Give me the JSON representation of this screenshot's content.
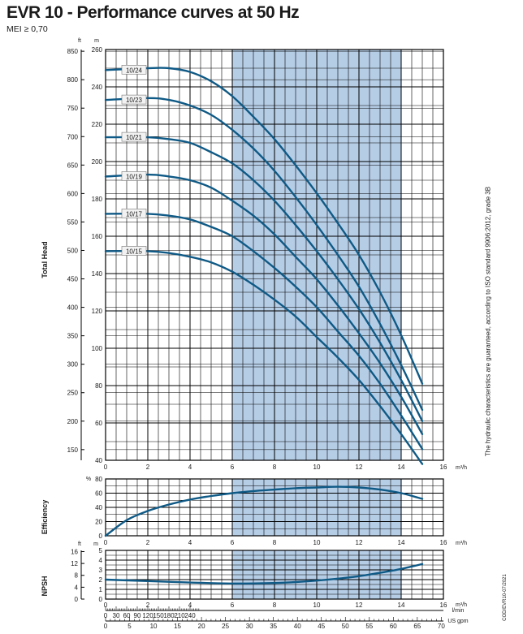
{
  "header": {
    "title": "EVR 10 - Performance curves at 50 Hz",
    "subtitle": "MEI ≥ 0,70",
    "side_note": "The hydraulic characteristics are guaranteed, according to ISO standard 9906:2012, grade 3B",
    "code": "COD/EVR10-07/2021"
  },
  "colors": {
    "curve": "#0f5a86",
    "band": "#b6cde6",
    "grid": "#000000",
    "label_bg": "#f2f2f2"
  },
  "chart_data": [
    {
      "id": "head",
      "type": "line",
      "ylabel": "Total Head",
      "left_unit": "ft",
      "right_unit": "m",
      "x_unit": "m³/h",
      "xlim": [
        0,
        16
      ],
      "ylim": [
        40,
        260
      ],
      "x_ticks": [
        0,
        2,
        4,
        6,
        8,
        10,
        12,
        14,
        16
      ],
      "y_ticks_m": [
        40,
        60,
        80,
        100,
        120,
        140,
        160,
        180,
        200,
        220,
        240,
        260
      ],
      "y_ticks_ft": [
        150,
        200,
        250,
        300,
        350,
        400,
        450,
        500,
        550,
        600,
        650,
        700,
        750,
        800,
        850
      ],
      "grid": true,
      "shaded_x_range": [
        6,
        14
      ],
      "series": [
        {
          "name": "10/24",
          "x": [
            0,
            2,
            3,
            4,
            5,
            6,
            7,
            8,
            9,
            10,
            11,
            12,
            13,
            14,
            15
          ],
          "y": [
            249,
            250,
            250,
            248,
            243,
            235,
            224,
            212,
            198,
            183,
            167,
            150,
            130,
            107,
            81
          ]
        },
        {
          "name": "10/23",
          "x": [
            0,
            2,
            3,
            4,
            5,
            6,
            7,
            8,
            9,
            10,
            11,
            12,
            13,
            14,
            15
          ],
          "y": [
            233,
            234,
            233,
            230,
            225,
            217,
            207,
            195,
            181,
            166,
            150,
            133,
            113,
            91,
            67
          ]
        },
        {
          "name": "10/21",
          "x": [
            0,
            2,
            3,
            4,
            5,
            6,
            7,
            8,
            9,
            10,
            11,
            12,
            13,
            14,
            15
          ],
          "y": [
            213,
            213,
            212,
            210,
            205,
            199,
            190,
            179,
            166,
            152,
            137,
            121,
            103,
            83,
            61
          ]
        },
        {
          "name": "10/19",
          "x": [
            0,
            2,
            3,
            4,
            5,
            6,
            7,
            8,
            9,
            10,
            11,
            12,
            13,
            14,
            15
          ],
          "y": [
            192,
            193,
            192,
            190,
            186,
            179,
            171,
            161,
            149,
            137,
            123,
            108,
            92,
            74,
            54
          ]
        },
        {
          "name": "10/17",
          "x": [
            0,
            2,
            3,
            4,
            5,
            6,
            7,
            8,
            9,
            10,
            11,
            12,
            13,
            14,
            15
          ],
          "y": [
            172,
            172,
            171,
            169,
            165,
            160,
            152,
            143,
            133,
            122,
            109,
            96,
            81,
            64,
            46
          ]
        },
        {
          "name": "10/15",
          "x": [
            0,
            2,
            3,
            4,
            5,
            6,
            7,
            8,
            9,
            10,
            11,
            12,
            13,
            14,
            15
          ],
          "y": [
            152,
            152,
            151,
            149,
            146,
            141,
            134,
            126,
            117,
            106,
            95,
            83,
            69,
            54,
            38
          ]
        }
      ]
    },
    {
      "id": "efficiency",
      "type": "line",
      "ylabel": "Efficiency",
      "left_unit": "%",
      "x_unit": "m³/h",
      "xlim": [
        0,
        16
      ],
      "ylim": [
        0,
        80
      ],
      "x_ticks": [
        0,
        2,
        4,
        6,
        8,
        10,
        12,
        14,
        16
      ],
      "y_ticks": [
        0,
        20,
        40,
        60,
        80
      ],
      "grid": true,
      "shaded_x_range": [
        6,
        14
      ],
      "series": [
        {
          "x": [
            0,
            1,
            2,
            3,
            4,
            5,
            6,
            7,
            8,
            9,
            10,
            11,
            12,
            13,
            14,
            15
          ],
          "y": [
            0,
            22,
            35,
            44,
            51,
            56,
            60,
            63,
            65,
            67,
            68,
            69,
            68,
            65,
            60,
            52
          ]
        }
      ]
    },
    {
      "id": "npsh",
      "type": "line",
      "ylabel": "NPSH",
      "left_unit": "ft",
      "right_unit": "m",
      "x_unit": "m³/h",
      "xlim": [
        0,
        16
      ],
      "ylim": [
        0,
        5
      ],
      "x_ticks": [
        0,
        2,
        4,
        6,
        8,
        10,
        12,
        14,
        16
      ],
      "y_ticks_m": [
        0,
        1,
        2,
        3,
        4,
        5
      ],
      "y_ticks_ft": [
        0,
        4,
        8,
        12,
        16
      ],
      "grid": true,
      "shaded_x_range": [
        6,
        14
      ],
      "series": [
        {
          "x": [
            0,
            2,
            4,
            6,
            8,
            9,
            10,
            11,
            12,
            13,
            14,
            15
          ],
          "y": [
            2.0,
            1.85,
            1.7,
            1.6,
            1.65,
            1.75,
            1.9,
            2.1,
            2.35,
            2.7,
            3.1,
            3.6
          ]
        }
      ],
      "extra_axes": [
        {
          "unit": "l/min",
          "ticks": [
            0,
            30,
            60,
            90,
            120,
            150,
            180,
            210,
            240
          ]
        },
        {
          "unit": "US gpm",
          "ticks": [
            0,
            5,
            10,
            15,
            20,
            25,
            30,
            35,
            40,
            45,
            50,
            55,
            60,
            65,
            70
          ]
        }
      ]
    }
  ]
}
